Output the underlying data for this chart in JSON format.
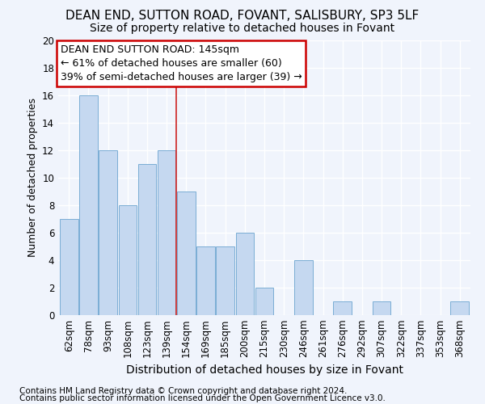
{
  "title1": "DEAN END, SUTTON ROAD, FOVANT, SALISBURY, SP3 5LF",
  "title2": "Size of property relative to detached houses in Fovant",
  "xlabel": "Distribution of detached houses by size in Fovant",
  "ylabel": "Number of detached properties",
  "categories": [
    "62sqm",
    "78sqm",
    "93sqm",
    "108sqm",
    "123sqm",
    "139sqm",
    "154sqm",
    "169sqm",
    "185sqm",
    "200sqm",
    "215sqm",
    "230sqm",
    "246sqm",
    "261sqm",
    "276sqm",
    "292sqm",
    "307sqm",
    "322sqm",
    "337sqm",
    "353sqm",
    "368sqm"
  ],
  "values": [
    7,
    16,
    12,
    8,
    11,
    12,
    9,
    5,
    5,
    6,
    2,
    0,
    4,
    0,
    1,
    0,
    1,
    0,
    0,
    0,
    1
  ],
  "bar_color": "#c5d8f0",
  "bar_edge_color": "#7aadd4",
  "annotation_box_text": "DEAN END SUTTON ROAD: 145sqm\n← 61% of detached houses are smaller (60)\n39% of semi-detached houses are larger (39) →",
  "annotation_box_color": "#ffffff",
  "annotation_box_edge_color": "#cc0000",
  "vline_color": "#cc2222",
  "vline_x": 6.0,
  "footer1": "Contains HM Land Registry data © Crown copyright and database right 2024.",
  "footer2": "Contains public sector information licensed under the Open Government Licence v3.0.",
  "ylim": [
    0,
    20
  ],
  "yticks": [
    0,
    2,
    4,
    6,
    8,
    10,
    12,
    14,
    16,
    18,
    20
  ],
  "background_color": "#f0f4fc",
  "plot_bg_color": "#f0f4fc",
  "grid_color": "#ffffff",
  "title1_fontsize": 11,
  "title2_fontsize": 10,
  "xlabel_fontsize": 10,
  "ylabel_fontsize": 9,
  "tick_fontsize": 8.5,
  "annotation_fontsize": 9,
  "footer_fontsize": 7.5
}
